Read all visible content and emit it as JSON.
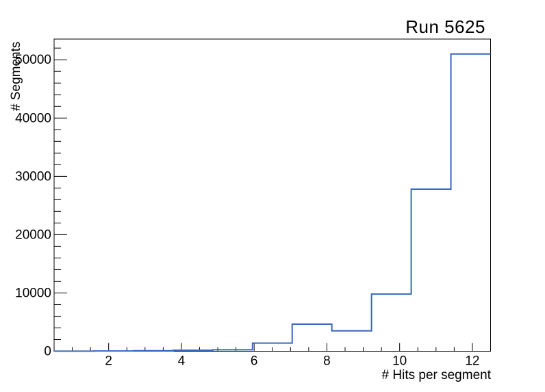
{
  "page": {
    "background": "#ffffff"
  },
  "chart_data": {
    "type": "bar",
    "style": "step-histogram",
    "title": "Run 5625",
    "xlabel": "# Hits per segment",
    "ylabel": "# Segments",
    "xlim": [
      0.5,
      12.5
    ],
    "ylim": [
      0,
      53550
    ],
    "bin_edges": [
      0.5,
      1.5909,
      2.6818,
      3.7727,
      4.8636,
      5.9545,
      7.0455,
      8.1364,
      9.2273,
      10.3182,
      11.4091,
      12.5
    ],
    "values": [
      15,
      40,
      90,
      180,
      250,
      1400,
      4650,
      3500,
      9800,
      27800,
      51000
    ],
    "x_major_ticks": [
      2,
      4,
      6,
      8,
      10,
      12
    ],
    "x_major_tick_labels": [
      "2",
      "4",
      "6",
      "8",
      "10",
      "12"
    ],
    "x_minor_tick_step": 0.5,
    "y_major_ticks": [
      0,
      10000,
      20000,
      30000,
      40000,
      50000
    ],
    "y_major_tick_labels": [
      "0",
      "10000",
      "20000",
      "30000",
      "40000",
      "50000"
    ],
    "y_minor_tick_step": 2000,
    "line_color": "#3867c0",
    "axis_color": "#000000",
    "grid": false,
    "legend_position": "none"
  }
}
